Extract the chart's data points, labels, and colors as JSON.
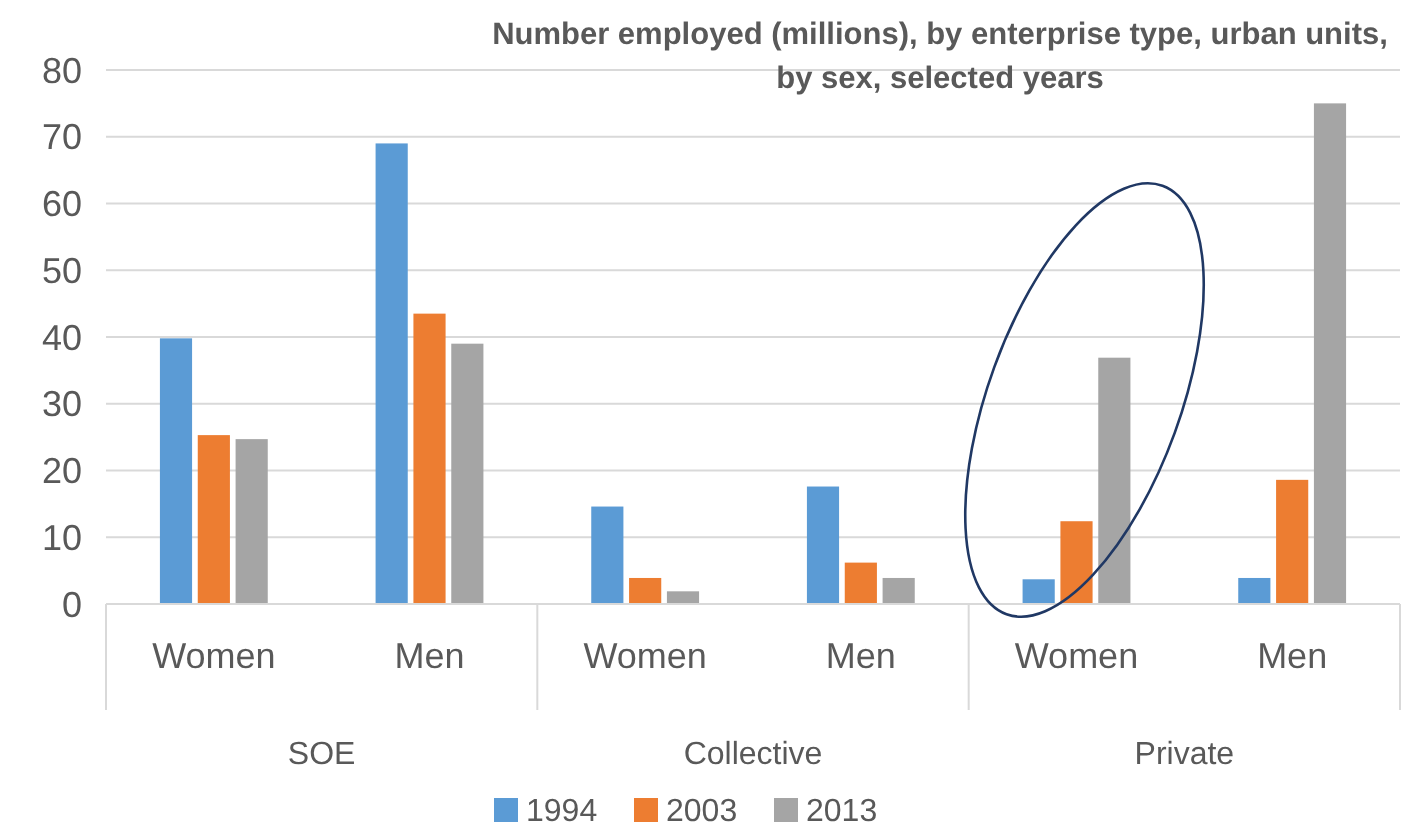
{
  "chart_data": {
    "type": "bar",
    "title": "Number employed (millions), by enterprise type, urban units, by sex, selected years",
    "categories": [
      "Women",
      "Men",
      "Women",
      "Men",
      "Women",
      "Men"
    ],
    "annotations": [
      "SOE",
      "Collective",
      "Private"
    ],
    "series": [
      {
        "name": "1994",
        "color": "#5b9bd5",
        "values": [
          39.8,
          69,
          14.6,
          17.6,
          3.7,
          3.9
        ]
      },
      {
        "name": "2003",
        "color": "#ed7d31",
        "values": [
          25.3,
          43.5,
          3.9,
          6.2,
          12.4,
          18.6
        ]
      },
      {
        "name": "2013",
        "color": "#a5a5a5",
        "values": [
          24.7,
          39,
          1.9,
          3.9,
          36.9,
          75
        ]
      }
    ],
    "ylim": [
      0,
      80
    ],
    "yticks": [
      0,
      10,
      20,
      30,
      40,
      50,
      60,
      70,
      80
    ],
    "grid": "y",
    "legend": "bottom"
  }
}
